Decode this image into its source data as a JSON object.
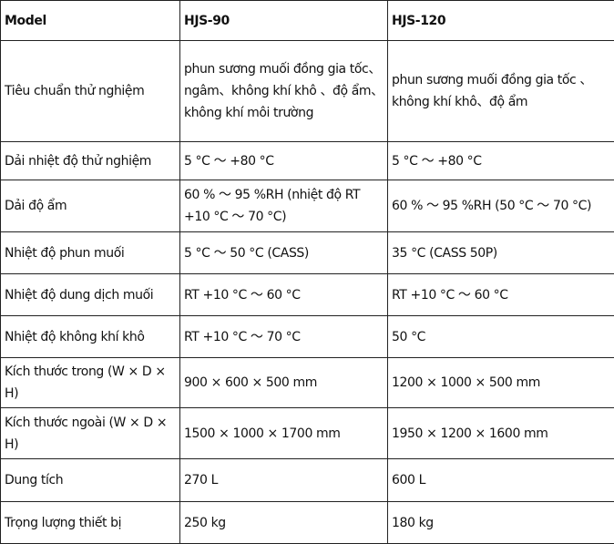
{
  "header": [
    "Model",
    "HJS-90",
    "HJS-120"
  ],
  "rows": [
    [
      "Tiêu chuẩn thử nghiệm",
      "phun sương muối đồng gia tốc、ngâm、không khí khô 、độ ẩm、không khí môi trường",
      "phun sương muối đồng gia tốc 、không khí khô、độ ẩm"
    ],
    [
      "Dải nhiệt độ thử nghiệm",
      "5 °C ～ +80 °C",
      "5 °C ～ +80 °C"
    ],
    [
      "Dải độ ẩm",
      "60 % ～ 95 %RH (nhiệt độ RT +10 °C ～ 70 °C)",
      "60 % ～ 95 %RH (50 °C ～ 70 °C)"
    ],
    [
      "Nhiệt độ phun muối",
      "5 °C ～ 50 °C (CASS)",
      "35 °C (CASS 50P)"
    ],
    [
      "Nhiệt độ dung dịch muối",
      "RT +10 °C ～ 60 °C",
      "RT +10 °C ～ 60 °C"
    ],
    [
      "Nhiệt độ không khí khô",
      "RT +10 °C ～ 70 °C",
      "50 °C"
    ],
    [
      "Kích thước trong (W × D × H)",
      "900 × 600 × 500 mm",
      "1200 × 1000 × 500 mm"
    ],
    [
      "Kích thước ngoài (W × D × H)",
      "1500 × 1000 × 1700 mm",
      "1950 × 1200 × 1600 mm"
    ],
    [
      "Dung tích",
      "270 L",
      "600 L"
    ],
    [
      "Trọng lượng thiết bị",
      "250 kg",
      "180 kg"
    ]
  ]
}
